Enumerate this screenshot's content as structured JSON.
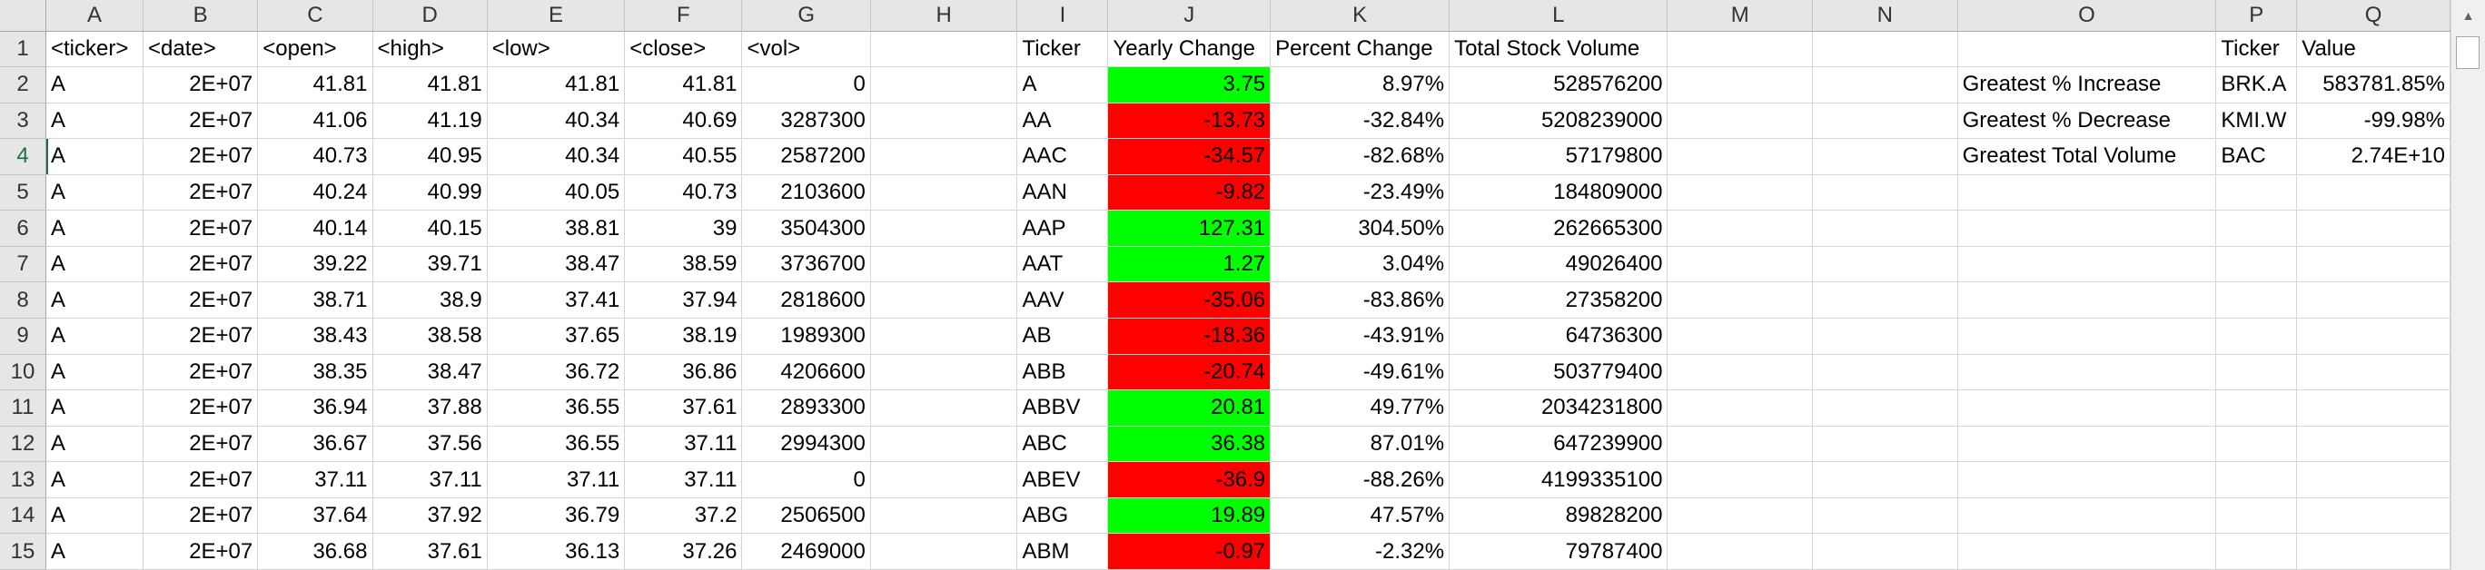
{
  "columns": [
    "A",
    "B",
    "C",
    "D",
    "E",
    "F",
    "G",
    "H",
    "I",
    "J",
    "K",
    "L",
    "M",
    "N",
    "O",
    "P",
    "Q"
  ],
  "row_numbers": [
    "1",
    "2",
    "3",
    "4",
    "5",
    "6",
    "7",
    "8",
    "9",
    "10",
    "11",
    "12",
    "13",
    "14",
    "15"
  ],
  "active_row": 4,
  "colors": {
    "positive_fill": "#00ff00",
    "negative_fill": "#ff0000",
    "header_bg": "#e6e6e6",
    "gridline": "#d4d4d4",
    "active_header": "#1f6f43"
  },
  "data_headers": [
    "<ticker>",
    "<date>",
    "<open>",
    "<high>",
    "<low>",
    "<close>",
    "<vol>"
  ],
  "data_rows": [
    [
      "A",
      "2E+07",
      "41.81",
      "41.81",
      "41.81",
      "41.81",
      "0"
    ],
    [
      "A",
      "2E+07",
      "41.06",
      "41.19",
      "40.34",
      "40.69",
      "3287300"
    ],
    [
      "A",
      "2E+07",
      "40.73",
      "40.95",
      "40.34",
      "40.55",
      "2587200"
    ],
    [
      "A",
      "2E+07",
      "40.24",
      "40.99",
      "40.05",
      "40.73",
      "2103600"
    ],
    [
      "A",
      "2E+07",
      "40.14",
      "40.15",
      "38.81",
      "39",
      "3504300"
    ],
    [
      "A",
      "2E+07",
      "39.22",
      "39.71",
      "38.47",
      "38.59",
      "3736700"
    ],
    [
      "A",
      "2E+07",
      "38.71",
      "38.9",
      "37.41",
      "37.94",
      "2818600"
    ],
    [
      "A",
      "2E+07",
      "38.43",
      "38.58",
      "37.65",
      "38.19",
      "1989300"
    ],
    [
      "A",
      "2E+07",
      "38.35",
      "38.47",
      "36.72",
      "36.86",
      "4206600"
    ],
    [
      "A",
      "2E+07",
      "36.94",
      "37.88",
      "36.55",
      "37.61",
      "2893300"
    ],
    [
      "A",
      "2E+07",
      "36.67",
      "37.56",
      "36.55",
      "37.11",
      "2994300"
    ],
    [
      "A",
      "2E+07",
      "37.11",
      "37.11",
      "37.11",
      "37.11",
      "0"
    ],
    [
      "A",
      "2E+07",
      "37.64",
      "37.92",
      "36.79",
      "37.2",
      "2506500"
    ],
    [
      "A",
      "2E+07",
      "36.68",
      "37.61",
      "36.13",
      "37.26",
      "2469000"
    ]
  ],
  "summary_headers": [
    "Ticker",
    "Yearly Change",
    "Percent Change",
    "Total Stock Volume"
  ],
  "summary_rows": [
    [
      "A",
      "3.75",
      "8.97%",
      "528576200"
    ],
    [
      "AA",
      "-13.73",
      "-32.84%",
      "5208239000"
    ],
    [
      "AAC",
      "-34.57",
      "-82.68%",
      "57179800"
    ],
    [
      "AAN",
      "-9.82",
      "-23.49%",
      "184809000"
    ],
    [
      "AAP",
      "127.31",
      "304.50%",
      "262665300"
    ],
    [
      "AAT",
      "1.27",
      "3.04%",
      "49026400"
    ],
    [
      "AAV",
      "-35.06",
      "-83.86%",
      "27358200"
    ],
    [
      "AB",
      "-18.36",
      "-43.91%",
      "64736300"
    ],
    [
      "ABB",
      "-20.74",
      "-49.61%",
      "503779400"
    ],
    [
      "ABBV",
      "20.81",
      "49.77%",
      "2034231800"
    ],
    [
      "ABC",
      "36.38",
      "87.01%",
      "647239900"
    ],
    [
      "ABEV",
      "-36.9",
      "-88.26%",
      "4199335100"
    ],
    [
      "ABG",
      "19.89",
      "47.57%",
      "89828200"
    ],
    [
      "ABM",
      "-0.97",
      "-2.32%",
      "79787400"
    ]
  ],
  "greatest_headers": [
    "Ticker",
    "Value"
  ],
  "greatest_rows": [
    [
      "Greatest % Increase",
      "BRK.A",
      "583781.85%"
    ],
    [
      "Greatest % Decrease",
      "KMI.W",
      "-99.98%"
    ],
    [
      "Greatest Total Volume",
      "BAC",
      "2.74E+10"
    ]
  ],
  "scrollbar": {
    "up_icon": "▲"
  }
}
